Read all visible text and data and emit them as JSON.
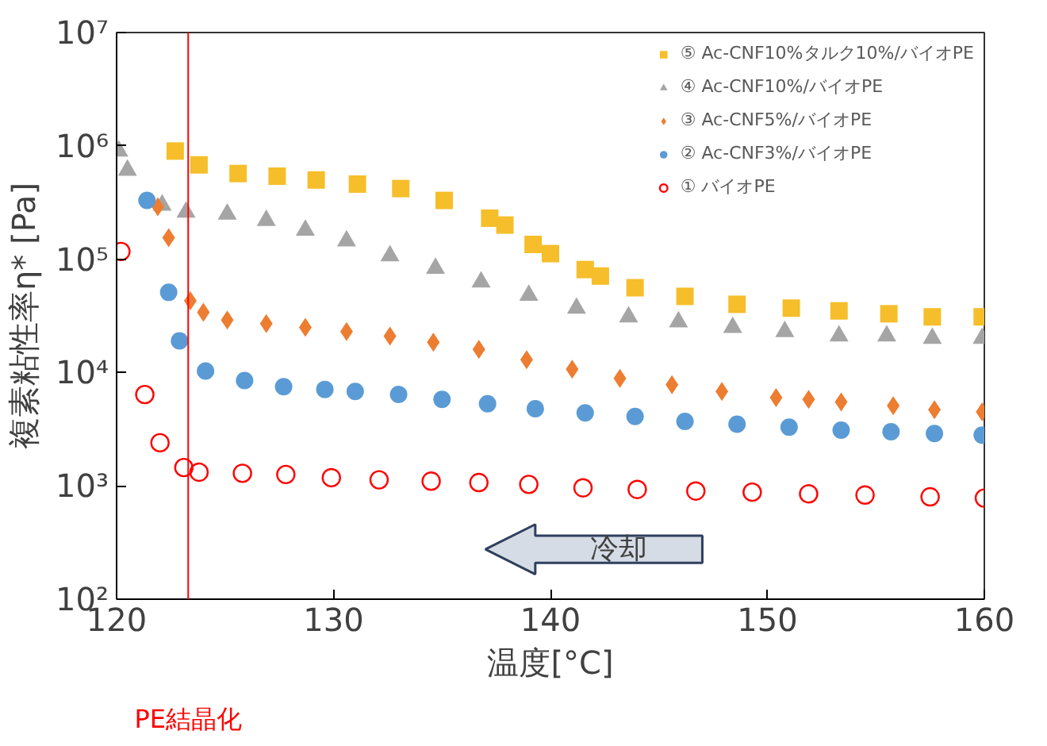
{
  "chart_data": {
    "type": "scatter",
    "xlabel": "温度[°C]",
    "ylabel": "複素粘性率η* [Pa]",
    "log": true,
    "grid": false,
    "legend": "top right",
    "xlim": [
      120,
      160
    ],
    "xticks": [
      120,
      130,
      140,
      150,
      160
    ],
    "ylim": [
      100,
      10000000
    ],
    "yticks": [
      {
        "value": 100,
        "label": "10²"
      },
      {
        "value": 1000,
        "label": "10³"
      },
      {
        "value": 10000,
        "label": "10⁴"
      },
      {
        "value": 100000,
        "label": "10⁵"
      },
      {
        "value": 1000000,
        "label": "10⁶"
      },
      {
        "value": 10000000,
        "label": "10⁷"
      }
    ],
    "ref_lines": [
      {
        "axis": "x",
        "value": 123.3,
        "label": "PE結晶化",
        "color": "#ff0000"
      }
    ],
    "annotations": [
      "冷却"
    ],
    "series": [
      {
        "name": "⑤ Ac-CNF10%タルク10%/バイオPE",
        "color": "#f5be2a",
        "marker": "square",
        "x": [
          122.7,
          123.8,
          125.6,
          127.4,
          129.2,
          131.1,
          133.1,
          135.1,
          137.2,
          137.9,
          139.2,
          140.0,
          141.6,
          142.3,
          143.9,
          146.2,
          148.6,
          151.1,
          153.3,
          155.6,
          157.6,
          159.9
        ],
        "values": [
          900000,
          680000,
          570000,
          540000,
          500000,
          460000,
          420000,
          330000,
          230000,
          200000,
          135000,
          112000,
          81000,
          71000,
          56000,
          47000,
          40000,
          37000,
          35000,
          33000,
          31000,
          31000
        ]
      },
      {
        "name": "④ Ac-CNF10%/バイオPE",
        "color": "#a5a5a5",
        "marker": "triangle",
        "x": [
          120.1,
          120.5,
          122.1,
          123.2,
          125.1,
          126.9,
          128.7,
          130.6,
          132.6,
          134.7,
          136.8,
          139.0,
          141.2,
          143.6,
          145.9,
          148.4,
          150.8,
          153.3,
          155.5,
          157.6,
          159.9
        ],
        "values": [
          900000,
          610000,
          300000,
          260000,
          250000,
          220000,
          180000,
          145000,
          107000,
          83000,
          63000,
          48000,
          37000,
          31000,
          28000,
          25000,
          23000,
          21000,
          21000,
          20000,
          20000
        ]
      },
      {
        "name": "③ Ac-CNF5%/バイオPE",
        "color": "#ed7d31",
        "marker": "diamond",
        "x": [
          121.9,
          122.4,
          123.4,
          124.0,
          125.1,
          126.9,
          128.7,
          130.6,
          132.6,
          134.6,
          136.7,
          138.9,
          141.0,
          143.2,
          145.6,
          147.9,
          150.4,
          151.9,
          153.4,
          155.8,
          157.7,
          159.9
        ],
        "values": [
          290000,
          155000,
          43000,
          34000,
          29000,
          27000,
          25000,
          23000,
          21000,
          18500,
          16000,
          13000,
          10700,
          8900,
          7800,
          6800,
          6000,
          5800,
          5500,
          5100,
          4700,
          4500
        ]
      },
      {
        "name": "② Ac-CNF3%/バイオPE",
        "color": "#5b9bd5",
        "marker": "circle",
        "x": [
          121.4,
          122.4,
          122.9,
          124.1,
          125.9,
          127.7,
          129.6,
          131.0,
          133.0,
          135.0,
          137.1,
          139.3,
          141.6,
          143.9,
          146.2,
          148.6,
          151.0,
          153.4,
          155.7,
          157.7,
          159.9
        ],
        "values": [
          330000,
          51000,
          19000,
          10300,
          8500,
          7500,
          7100,
          6800,
          6400,
          5800,
          5300,
          4800,
          4400,
          4100,
          3700,
          3500,
          3300,
          3100,
          3000,
          2900,
          2800
        ]
      },
      {
        "name": "① バイオPE",
        "color": "#ff0000",
        "marker": "circle_open",
        "x": [
          120.2,
          121.3,
          122.0,
          123.1,
          123.8,
          125.8,
          127.8,
          129.9,
          132.1,
          134.5,
          136.7,
          139.0,
          141.5,
          144.0,
          146.7,
          149.3,
          151.9,
          154.5,
          157.5,
          160.0
        ],
        "values": [
          117000,
          6400,
          2400,
          1450,
          1320,
          1290,
          1260,
          1180,
          1130,
          1100,
          1070,
          1030,
          960,
          930,
          900,
          880,
          850,
          830,
          800,
          780
        ]
      }
    ]
  }
}
